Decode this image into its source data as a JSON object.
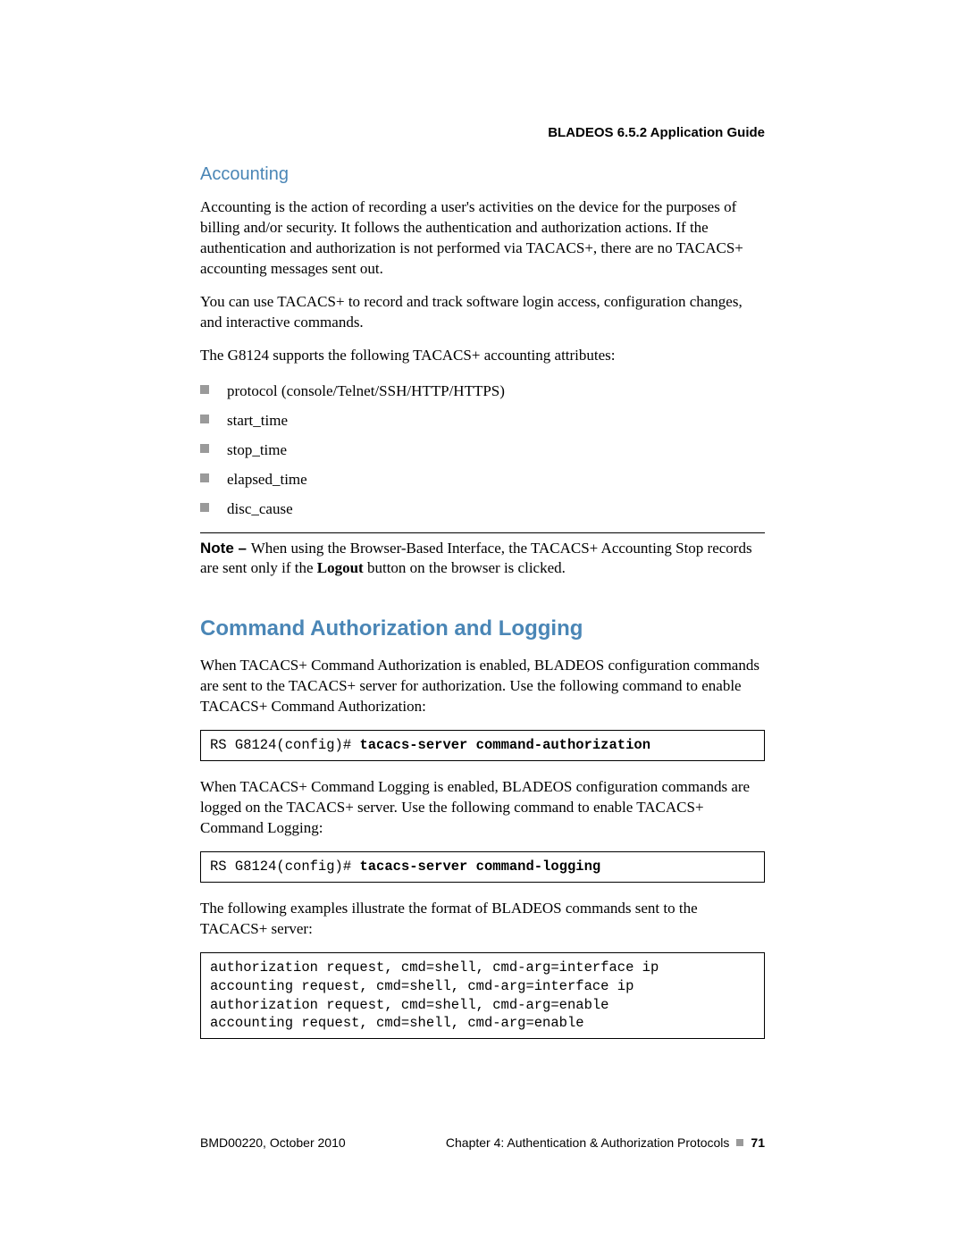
{
  "header": {
    "product": "BLADEOS 6.5.2 Application Guide"
  },
  "accounting": {
    "title": "Accounting",
    "p1": "Accounting is the action of recording a user's activities on the device for the purposes of billing and/or security. It follows the authentication and authorization actions. If the authentication and authorization is not performed via TACACS+, there are no TACACS+ accounting messages sent out.",
    "p2": "You can use TACACS+ to record and track software login access, configuration changes, and interactive commands.",
    "p3": "The G8124 supports the following TACACS+ accounting attributes:",
    "items": [
      "protocol (console/Telnet/SSH/HTTP/HTTPS)",
      "start_time",
      "stop_time",
      "elapsed_time",
      "disc_cause"
    ],
    "note_label": "Note – ",
    "note_before": "When using the Browser-Based Interface, the TACACS+ Accounting Stop records are sent only if the ",
    "note_bold": "Logout",
    "note_after": " button on the browser is clicked."
  },
  "cmdauth": {
    "title": "Command Authorization and Logging",
    "p1": "When TACACS+ Command Authorization is enabled, BLADEOS configuration commands are sent to the TACACS+ server for authorization. Use the following command to enable TACACS+ Command Authorization:",
    "code1_prompt": "RS G8124(config)# ",
    "code1_cmd": "tacacs-server command-authorization",
    "p2": "When TACACS+ Command Logging is enabled, BLADEOS configuration commands are logged on the TACACS+ server. Use the following command to enable TACACS+ Command Logging:",
    "code2_prompt": "RS G8124(config)# ",
    "code2_cmd": "tacacs-server command-logging",
    "p3": "The following examples illustrate the format of BLADEOS commands sent to the TACACS+ server:",
    "code3": "authorization request, cmd=shell, cmd-arg=interface ip\naccounting request, cmd=shell, cmd-arg=interface ip\nauthorization request, cmd=shell, cmd-arg=enable\naccounting request, cmd=shell, cmd-arg=enable"
  },
  "footer": {
    "left": "BMD00220, October 2010",
    "chapter": "Chapter 4: Authentication & Authorization Protocols",
    "page": "71"
  }
}
